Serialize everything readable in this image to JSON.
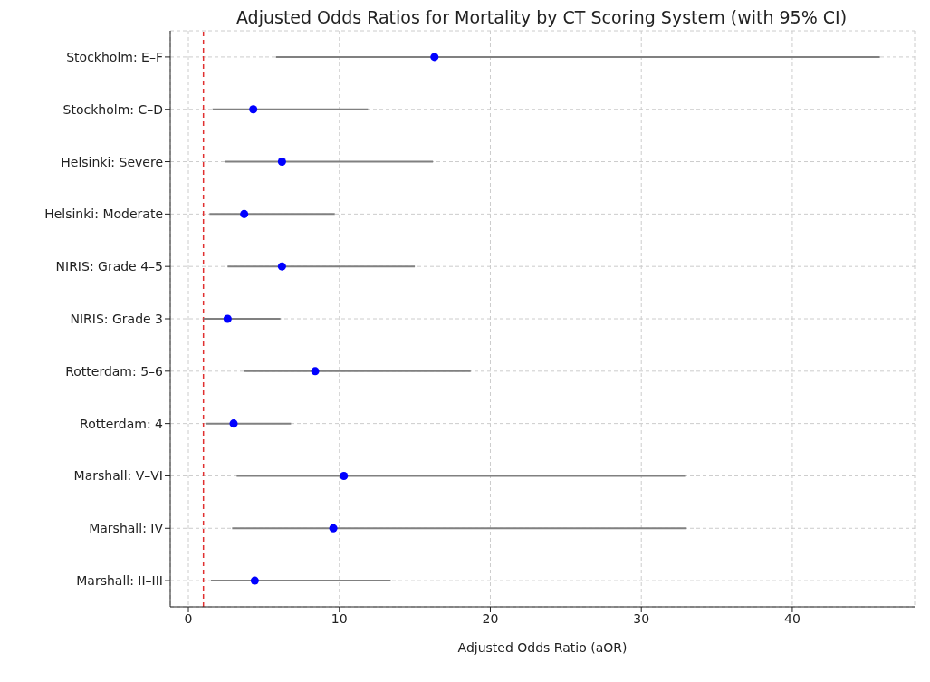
{
  "chart_data": {
    "type": "scatter",
    "title": "Adjusted Odds Ratios for Mortality by CT Scoring System (with 95% CI)",
    "xlabel": "Adjusted Odds Ratio (aOR)",
    "categories": [
      "Stockholm: E–F",
      "Stockholm: C–D",
      "Helsinki: Severe",
      "Helsinki: Moderate",
      "NIRIS: Grade 4–5",
      "NIRIS: Grade 3",
      "Rotterdam: 5–6",
      "Rotterdam: 4",
      "Marshall: V–VI",
      "Marshall: IV",
      "Marshall: II–III"
    ],
    "orientation": "horizontal",
    "values": [
      16.3,
      4.3,
      6.2,
      3.7,
      6.2,
      2.6,
      8.4,
      3.0,
      10.3,
      9.6,
      4.4
    ],
    "errors": [
      [
        5.8,
        45.8
      ],
      [
        1.6,
        11.9
      ],
      [
        2.4,
        16.2
      ],
      [
        1.4,
        9.7
      ],
      [
        2.6,
        15.0
      ],
      [
        1.0,
        6.1
      ],
      [
        3.7,
        18.7
      ],
      [
        1.2,
        6.8
      ],
      [
        3.2,
        32.9
      ],
      [
        2.9,
        33.0
      ],
      [
        1.5,
        13.4
      ]
    ],
    "color": "#0000ff",
    "xlim": [
      -1.2,
      48.1
    ],
    "xticks": [
      0,
      10,
      20,
      30,
      40
    ],
    "ref_lines": [
      {
        "axis": "x",
        "value": 1,
        "color": "#e03030",
        "line_style": "dashed"
      }
    ],
    "grid": true,
    "marker": "circle"
  }
}
